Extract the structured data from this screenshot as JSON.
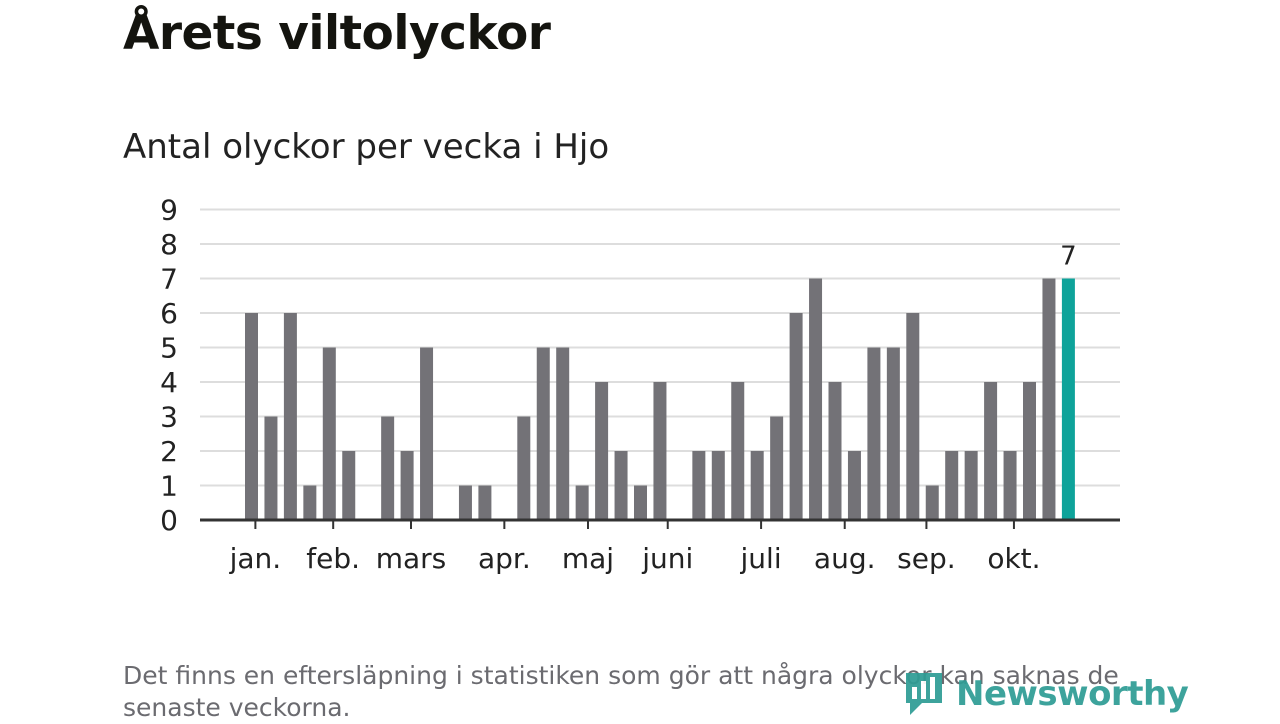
{
  "header": {
    "title": "Årets viltolyckor",
    "subtitle": "Antal olyckor per vecka i Hjo"
  },
  "footnote": "Det finns en eftersläpning i statistiken som gör att några olyckor kan saknas de senaste veckorna.",
  "logo": {
    "text": "Newsworthy",
    "icon": "bar-chart-icon"
  },
  "colors": {
    "bar": "#737277",
    "highlight": "#0ea39a",
    "grid": "#dddddd",
    "axis": "#333333",
    "text": "#222222"
  },
  "chart_data": {
    "type": "bar",
    "xlabel": "",
    "ylabel": "",
    "ylim": [
      0,
      9
    ],
    "yticks": [
      0,
      1,
      2,
      3,
      4,
      5,
      6,
      7,
      8,
      9
    ],
    "grid": true,
    "week_values": [
      6,
      3,
      6,
      1,
      5,
      2,
      0,
      3,
      2,
      5,
      0,
      1,
      1,
      0,
      3,
      5,
      5,
      1,
      4,
      2,
      1,
      4,
      0,
      2,
      2,
      4,
      2,
      3,
      6,
      7,
      4,
      2,
      5,
      5,
      6,
      1,
      2,
      2,
      4,
      2,
      4,
      7,
      7
    ],
    "highlight_index": 42,
    "highlight_label": "7",
    "month_labels": [
      {
        "label": "jan.",
        "at_week": 0.2
      },
      {
        "label": "feb.",
        "at_week": 4.2
      },
      {
        "label": "mars",
        "at_week": 8.2
      },
      {
        "label": "apr.",
        "at_week": 13.0
      },
      {
        "label": "maj",
        "at_week": 17.3
      },
      {
        "label": "juni",
        "at_week": 21.4
      },
      {
        "label": "juli",
        "at_week": 26.2
      },
      {
        "label": "aug.",
        "at_week": 30.5
      },
      {
        "label": "sep.",
        "at_week": 34.7
      },
      {
        "label": "okt.",
        "at_week": 39.2
      }
    ]
  }
}
